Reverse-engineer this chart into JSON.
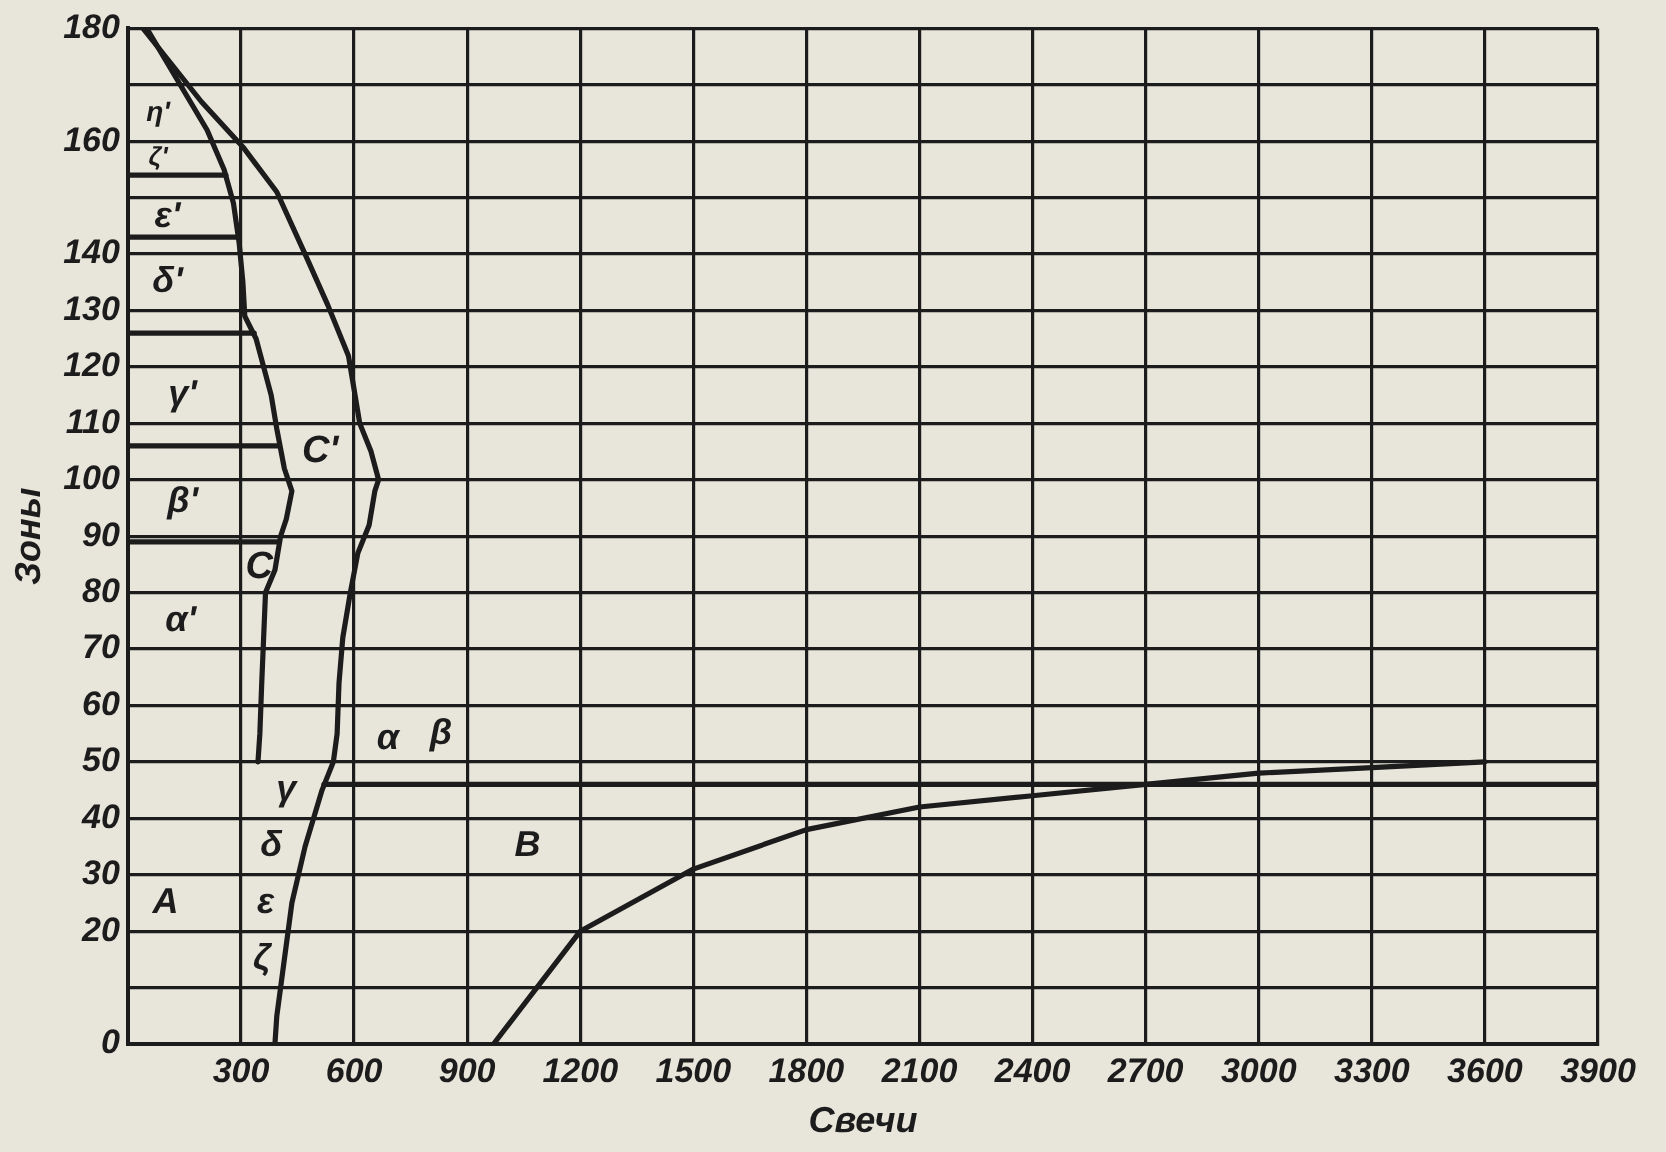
{
  "chart_data": {
    "type": "line",
    "xlabel": "Свечи",
    "ylabel": "Зоны",
    "xlim": [
      0,
      3900
    ],
    "xticks": [
      300,
      600,
      900,
      1200,
      1500,
      1800,
      2100,
      2400,
      2700,
      3000,
      3300,
      3600,
      3900
    ],
    "ylim": [
      0,
      180
    ],
    "yticks": [
      0,
      {
        "value": 10,
        "label": null
      },
      20,
      30,
      40,
      50,
      60,
      70,
      80,
      90,
      100,
      110,
      120,
      130,
      140,
      {
        "value": 150,
        "label": null
      },
      160,
      {
        "value": 170,
        "label": null
      },
      180
    ],
    "grid": true,
    "series": [
      {
        "name": "C",
        "color": "#1c1c1c",
        "x": [
          50,
          210,
          255,
          280,
          295,
          305,
          310,
          340,
          360,
          380,
          395,
          415,
          435,
          420,
          405,
          390,
          365,
          360,
          355,
          350,
          345
        ],
        "values": [
          180,
          162,
          155,
          149,
          142,
          135,
          129,
          125,
          120,
          115,
          109,
          102,
          98,
          93,
          90,
          84,
          80,
          72,
          64,
          55,
          50
        ]
      },
      {
        "name": "C'",
        "color": "#1c1c1c",
        "x": [
          40,
          195,
          305,
          395,
          470,
          530,
          585,
          600,
          615,
          645,
          665,
          655,
          640,
          610,
          590,
          570,
          560,
          555,
          545,
          515,
          470,
          435,
          395,
          390
        ],
        "values": [
          180,
          167,
          159,
          151,
          140,
          131,
          122,
          116,
          110,
          105,
          100,
          98,
          92,
          87,
          80,
          72,
          64,
          55,
          50,
          45,
          35,
          25,
          5,
          0
        ]
      },
      {
        "color": "#1c1c1c",
        "x": [
          970,
          1200,
          1500,
          1800,
          2100,
          2400,
          2700,
          3000,
          3300,
          3600
        ],
        "values": [
          0,
          20,
          31,
          38,
          42,
          44,
          46,
          48,
          49,
          50
        ]
      },
      {
        "color": "#1c1c1c",
        "x": [
          0,
          400
        ],
        "values": [
          89,
          89
        ]
      },
      {
        "color": "#1c1c1c",
        "x": [
          0,
          400
        ],
        "values": [
          106,
          106
        ]
      },
      {
        "color": "#1c1c1c",
        "x": [
          0,
          335
        ],
        "values": [
          126,
          126
        ]
      },
      {
        "color": "#1c1c1c",
        "x": [
          0,
          290
        ],
        "values": [
          143,
          143
        ]
      },
      {
        "color": "#1c1c1c",
        "x": [
          0,
          260
        ],
        "values": [
          154,
          154
        ]
      },
      {
        "color": "#1c1c1c",
        "x": [
          520,
          3900
        ],
        "values": [
          46,
          46
        ]
      }
    ],
    "annotations": [
      "A",
      "B",
      "α",
      "β",
      "γ",
      "δ",
      "ε",
      "ζ",
      "α'",
      "β'",
      "γ'",
      "δ'",
      "ε'",
      "ζ'",
      "η'"
    ]
  }
}
